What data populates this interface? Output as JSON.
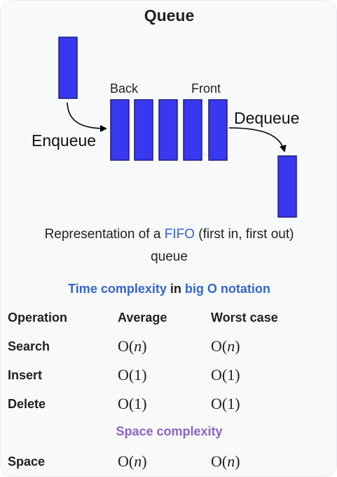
{
  "title": "Queue",
  "diagram": {
    "back_label": "Back",
    "front_label": "Front",
    "enqueue_label": "Enqueue",
    "dequeue_label": "Dequeue",
    "box_color": "#3838f0",
    "box_border": "#1c1c80",
    "queue_box_count": 5
  },
  "caption": {
    "prefix": "Representation of a ",
    "link": "FIFO",
    "suffix": " (first in, first out)",
    "line2": "queue"
  },
  "time_complexity": {
    "heading_link1": "Time complexity",
    "heading_mid": " in ",
    "heading_link2": "big O notation",
    "columns": [
      "Operation",
      "Average",
      "Worst case"
    ],
    "rows": [
      {
        "op": "Search",
        "avg_fn": "O(",
        "avg_var": "n",
        "avg_end": ")",
        "worst_fn": "O(",
        "worst_var": "n",
        "worst_end": ")"
      },
      {
        "op": "Insert",
        "avg_fn": "O(1)",
        "avg_var": "",
        "avg_end": "",
        "worst_fn": "O(1)",
        "worst_var": "",
        "worst_end": ""
      },
      {
        "op": "Delete",
        "avg_fn": "O(1)",
        "avg_var": "",
        "avg_end": "",
        "worst_fn": "O(1)",
        "worst_var": "",
        "worst_end": ""
      }
    ]
  },
  "space_complexity": {
    "heading": "Space complexity",
    "rows": [
      {
        "op": "Space",
        "avg_fn": "O(",
        "avg_var": "n",
        "avg_end": ")",
        "worst_fn": "O(",
        "worst_var": "n",
        "worst_end": ")"
      }
    ]
  }
}
